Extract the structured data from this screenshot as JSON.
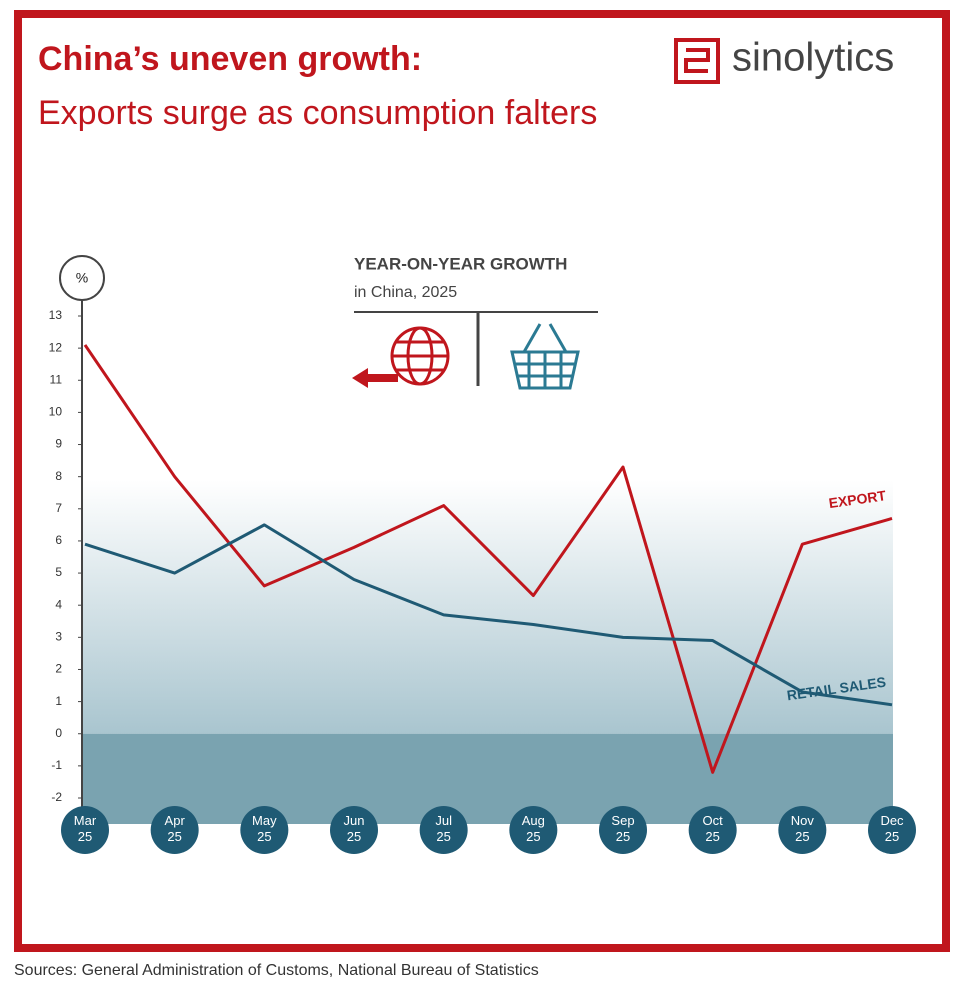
{
  "chart_data": {
    "type": "line",
    "title": "China’s uneven growth:",
    "subtitle": "Exports surge as consumption falters",
    "brand": "sinolytics",
    "y_label": "%",
    "legend_title": "YEAR-ON-YEAR GROWTH",
    "legend_subtitle": "in China, 2025",
    "source": "Sources: General Administration of Customs, National Bureau of Statistics",
    "categories": [
      "Mar 25",
      "Apr 25",
      "May 25",
      "Jun 25",
      "Jul 25",
      "Aug 25",
      "Sep 25",
      "Oct 25",
      "Nov 25",
      "Dec 25"
    ],
    "series": [
      {
        "name": "EXPORT",
        "color": "#c0161d",
        "values": [
          12.1,
          8.0,
          4.6,
          5.8,
          7.1,
          4.3,
          8.3,
          -1.2,
          5.9,
          6.7
        ]
      },
      {
        "name": "RETAIL SALES",
        "color": "#1f5a74",
        "values": [
          5.9,
          5.0,
          6.5,
          4.8,
          3.7,
          3.4,
          3.0,
          2.9,
          1.3,
          0.9
        ]
      }
    ],
    "ylim": [
      -2,
      13
    ],
    "yticks": [
      -2,
      -1,
      0,
      1,
      2,
      3,
      4,
      5,
      6,
      7,
      8,
      9,
      10,
      11,
      12,
      13
    ]
  }
}
